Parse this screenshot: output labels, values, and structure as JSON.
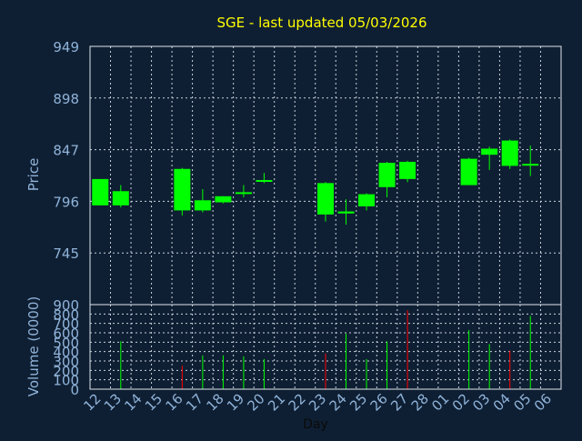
{
  "title": "SGE - last updated 05/03/2026",
  "colors": {
    "background": "#0f1f33",
    "title": "#ffff00",
    "axis_text": "#8fb3d9",
    "frame": "#dfe6ee",
    "grid": "#c8d2dc",
    "up": "#00ff00",
    "down": "#ff0000",
    "xlabel": "#0a0a0a"
  },
  "chart_data": [
    {
      "type": "candlestick",
      "title": "SGE - last updated 05/03/2026",
      "ylabel": "Price",
      "ylim": [
        694,
        949
      ],
      "yticks": [
        949,
        898,
        847,
        796,
        745
      ],
      "grid": true,
      "categories": [
        "12",
        "13",
        "14",
        "15",
        "16",
        "17",
        "18",
        "19",
        "20",
        "21",
        "22",
        "23",
        "24",
        "25",
        "26",
        "27",
        "28",
        "01",
        "02",
        "03",
        "04",
        "05",
        "06"
      ],
      "candles": [
        {
          "day": "12",
          "open": 792,
          "high": 818,
          "low": 792,
          "close": 818
        },
        {
          "day": "13",
          "open": 792,
          "high": 812,
          "low": 790,
          "close": 806
        },
        {
          "day": "16",
          "open": 787,
          "high": 829,
          "low": 782,
          "close": 828
        },
        {
          "day": "17",
          "open": 787,
          "high": 808,
          "low": 785,
          "close": 797
        },
        {
          "day": "18",
          "open": 795,
          "high": 801,
          "low": 794,
          "close": 801
        },
        {
          "day": "19",
          "open": 804,
          "high": 812,
          "low": 800,
          "close": 805
        },
        {
          "day": "20",
          "open": 816,
          "high": 824,
          "low": 814,
          "close": 817
        },
        {
          "day": "23",
          "open": 783,
          "high": 815,
          "low": 776,
          "close": 814
        },
        {
          "day": "24",
          "open": 784,
          "high": 798,
          "low": 773,
          "close": 786
        },
        {
          "day": "25",
          "open": 791,
          "high": 804,
          "low": 787,
          "close": 803
        },
        {
          "day": "26",
          "open": 810,
          "high": 835,
          "low": 800,
          "close": 834
        },
        {
          "day": "27",
          "open": 818,
          "high": 836,
          "low": 815,
          "close": 835
        },
        {
          "day": "02",
          "open": 812,
          "high": 839,
          "low": 812,
          "close": 838
        },
        {
          "day": "03",
          "open": 842,
          "high": 850,
          "low": 827,
          "close": 848
        },
        {
          "day": "04",
          "open": 831,
          "high": 857,
          "low": 828,
          "close": 856
        },
        {
          "day": "05",
          "open": 833,
          "high": 851,
          "low": 821,
          "close": 833
        }
      ]
    },
    {
      "type": "bar",
      "ylabel": "Volume (0000)",
      "xlabel": "Day",
      "ylim": [
        0,
        900
      ],
      "yticks": [
        900,
        800,
        700,
        600,
        500,
        400,
        300,
        200,
        100,
        0
      ],
      "grid": true,
      "categories": [
        "12",
        "13",
        "14",
        "15",
        "16",
        "17",
        "18",
        "19",
        "20",
        "21",
        "22",
        "23",
        "24",
        "25",
        "26",
        "27",
        "28",
        "01",
        "02",
        "03",
        "04",
        "05",
        "06"
      ],
      "bars": [
        {
          "day": "13",
          "value": 510,
          "direction": "up"
        },
        {
          "day": "16",
          "value": 250,
          "direction": "down"
        },
        {
          "day": "17",
          "value": 360,
          "direction": "up"
        },
        {
          "day": "18",
          "value": 360,
          "direction": "up"
        },
        {
          "day": "19",
          "value": 350,
          "direction": "up"
        },
        {
          "day": "20",
          "value": 320,
          "direction": "up"
        },
        {
          "day": "23",
          "value": 380,
          "direction": "down"
        },
        {
          "day": "24",
          "value": 590,
          "direction": "up"
        },
        {
          "day": "25",
          "value": 320,
          "direction": "up"
        },
        {
          "day": "26",
          "value": 510,
          "direction": "up"
        },
        {
          "day": "27",
          "value": 840,
          "direction": "down"
        },
        {
          "day": "02",
          "value": 630,
          "direction": "up"
        },
        {
          "day": "03",
          "value": 480,
          "direction": "up"
        },
        {
          "day": "04",
          "value": 410,
          "direction": "down"
        },
        {
          "day": "05",
          "value": 780,
          "direction": "up"
        }
      ]
    }
  ]
}
